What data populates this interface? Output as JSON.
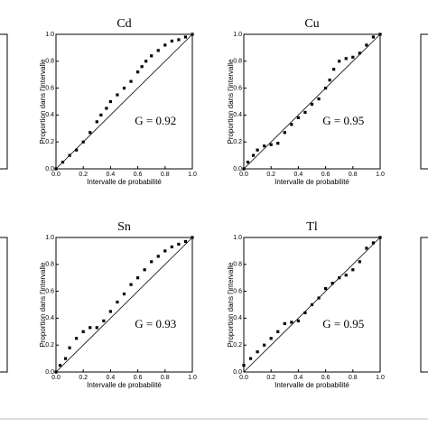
{
  "chart_data": [
    {
      "type": "scatter",
      "title": "Cd",
      "x_label": "Intervalle de probabilité",
      "y_label": "Proportion dans l'intervalle",
      "annotation": "G = 0.92",
      "color": "#000000",
      "x": [
        0,
        0.05,
        0.1,
        0.15,
        0.2,
        0.25,
        0.3,
        0.33,
        0.37,
        0.4,
        0.45,
        0.5,
        0.55,
        0.6,
        0.63,
        0.66,
        0.7,
        0.75,
        0.8,
        0.85,
        0.9,
        0.95,
        1.0
      ],
      "values": [
        0,
        0.05,
        0.1,
        0.14,
        0.2,
        0.27,
        0.35,
        0.4,
        0.45,
        0.5,
        0.55,
        0.6,
        0.65,
        0.72,
        0.76,
        0.8,
        0.84,
        0.88,
        0.92,
        0.95,
        0.96,
        0.98,
        1.0
      ],
      "xlim": [
        0,
        1
      ],
      "ylim": [
        0,
        1
      ],
      "xticks": [
        {
          "value": 0,
          "label": "0.0"
        },
        0.2,
        0.4,
        0.6,
        0.8,
        {
          "value": 1,
          "label": "1.0"
        }
      ],
      "yticks": [
        {
          "value": 0,
          "label": "0.0"
        },
        0.2,
        0.4,
        0.6,
        0.8,
        {
          "value": 1,
          "label": "1.0"
        }
      ]
    },
    {
      "type": "scatter",
      "title": "Cu",
      "x_label": "Intervalle de probabilité",
      "y_label": "Proportion dans l'intervalle",
      "annotation": "G = 0.95",
      "color": "#000000",
      "x": [
        0,
        0.03,
        0.07,
        0.1,
        0.15,
        0.2,
        0.25,
        0.3,
        0.35,
        0.4,
        0.45,
        0.5,
        0.55,
        0.6,
        0.63,
        0.66,
        0.7,
        0.75,
        0.8,
        0.85,
        0.9,
        0.95,
        1.0
      ],
      "values": [
        0,
        0.05,
        0.1,
        0.14,
        0.17,
        0.18,
        0.19,
        0.27,
        0.33,
        0.38,
        0.42,
        0.48,
        0.52,
        0.6,
        0.66,
        0.74,
        0.8,
        0.82,
        0.83,
        0.86,
        0.92,
        0.98,
        1.0
      ],
      "xlim": [
        0,
        1
      ],
      "ylim": [
        0,
        1
      ],
      "xticks": [
        {
          "value": 0,
          "label": "0.0"
        },
        0.2,
        0.4,
        0.6,
        0.8,
        {
          "value": 1,
          "label": "1.0"
        }
      ],
      "yticks": [
        {
          "value": 0,
          "label": "0.0"
        },
        0.2,
        0.4,
        0.6,
        0.8,
        {
          "value": 1,
          "label": "1.0"
        }
      ]
    },
    {
      "type": "scatter",
      "title": "Sn",
      "x_label": "Intervalle de probabilité",
      "y_label": "Proportion dans l'intervalle",
      "annotation": "G = 0.93",
      "color": "#000000",
      "x": [
        0,
        0.03,
        0.07,
        0.1,
        0.15,
        0.2,
        0.25,
        0.3,
        0.35,
        0.4,
        0.45,
        0.5,
        0.55,
        0.6,
        0.65,
        0.7,
        0.75,
        0.8,
        0.85,
        0.9,
        0.95,
        1.0
      ],
      "values": [
        0,
        0.05,
        0.1,
        0.18,
        0.25,
        0.3,
        0.33,
        0.33,
        0.38,
        0.45,
        0.52,
        0.58,
        0.65,
        0.7,
        0.76,
        0.82,
        0.86,
        0.9,
        0.93,
        0.95,
        0.97,
        1.0
      ],
      "xlim": [
        0,
        1
      ],
      "ylim": [
        0,
        1
      ],
      "xticks": [
        {
          "value": 0,
          "label": "0.0"
        },
        0.2,
        0.4,
        0.6,
        0.8,
        {
          "value": 1,
          "label": "1.0"
        }
      ],
      "yticks": [
        {
          "value": 0,
          "label": "0.0"
        },
        0.2,
        0.4,
        0.6,
        0.8,
        {
          "value": 1,
          "label": "1.0"
        }
      ]
    },
    {
      "type": "scatter",
      "title": "Tl",
      "x_label": "Intervalle de probabilité",
      "y_label": "Proportion dans l'intervalle",
      "annotation": "G = 0.95",
      "color": "#000000",
      "x": [
        0,
        0.05,
        0.1,
        0.15,
        0.2,
        0.25,
        0.3,
        0.35,
        0.4,
        0.45,
        0.5,
        0.55,
        0.6,
        0.65,
        0.7,
        0.75,
        0.8,
        0.85,
        0.9,
        0.95,
        1.0
      ],
      "values": [
        0.05,
        0.1,
        0.15,
        0.2,
        0.25,
        0.3,
        0.36,
        0.37,
        0.38,
        0.44,
        0.5,
        0.55,
        0.62,
        0.66,
        0.7,
        0.72,
        0.76,
        0.82,
        0.92,
        0.96,
        1.0
      ],
      "xlim": [
        0,
        1
      ],
      "ylim": [
        0,
        1
      ],
      "xticks": [
        {
          "value": 0,
          "label": "0.0"
        },
        0.2,
        0.4,
        0.6,
        0.8,
        {
          "value": 1,
          "label": "1.0"
        }
      ],
      "yticks": [
        {
          "value": 0,
          "label": "0.0"
        },
        0.2,
        0.4,
        0.6,
        0.8,
        {
          "value": 1,
          "label": "1.0"
        }
      ]
    }
  ]
}
